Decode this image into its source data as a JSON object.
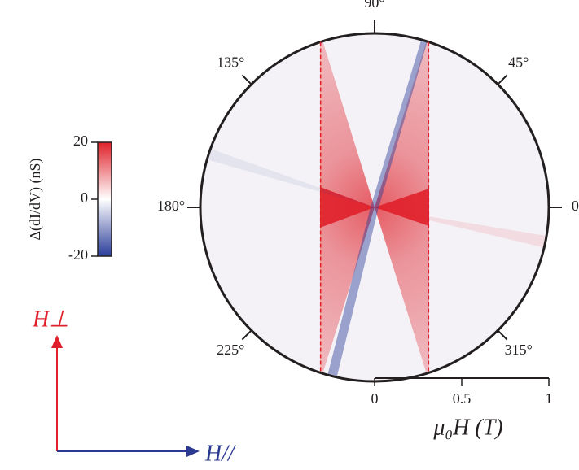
{
  "chart_data": {
    "type": "polar-map",
    "xlabel": "μ₀H (T)",
    "xlim": [
      0,
      1
    ],
    "xticks": [
      0,
      0.5,
      1
    ],
    "angle_ticks": [
      {
        "value": 0,
        "label": "0°"
      },
      {
        "value": 45,
        "label": "45°"
      },
      {
        "value": 90,
        "label": "90°"
      },
      {
        "value": 135,
        "label": "135°"
      },
      {
        "value": 180,
        "label": "180°"
      },
      {
        "value": 225,
        "label": "225°"
      },
      {
        "value": 315,
        "label": "315°"
      }
    ],
    "colorbar": {
      "label": "Δ(dI/dV) (nS)",
      "lim": [
        -20,
        20
      ],
      "ticks": [
        -20,
        0,
        20
      ],
      "colors": [
        "#2b3d9a",
        "#ffffff",
        "#e0202a"
      ]
    },
    "dashed_lines": [
      -0.31,
      0.31
    ],
    "dashed_color": "#e0202a",
    "arrows": [
      {
        "label": "H⊥",
        "color": "#e0202a"
      },
      {
        "label": "H//",
        "color": "#2b3990"
      }
    ]
  }
}
